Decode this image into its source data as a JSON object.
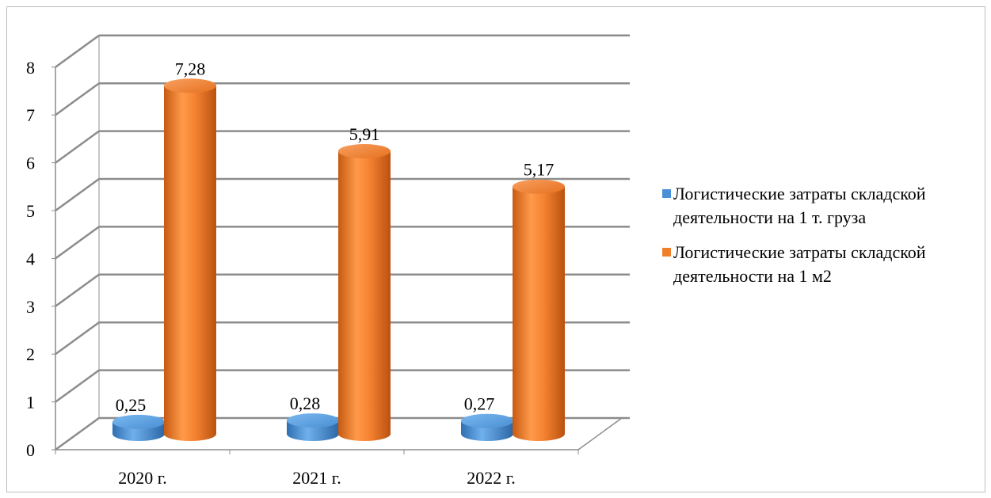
{
  "chart_data": {
    "type": "bar",
    "style": "3d-cylinder",
    "categories": [
      "2020 г.",
      "2021 г.",
      "2022 г."
    ],
    "series": [
      {
        "name": "Логистические затраты складской деятельности на 1 т. груза",
        "values": [
          0.25,
          0.28,
          0.27
        ],
        "labels": [
          "0,25",
          "0,28",
          "0,27"
        ],
        "color": "#4a90d9"
      },
      {
        "name": "Логистические затраты складской деятельности на 1 м2",
        "values": [
          7.28,
          5.91,
          5.17
        ],
        "labels": [
          "7,28",
          "5,91",
          "5,17"
        ],
        "color": "#f07f2c"
      }
    ],
    "y_ticks": [
      "0",
      "1",
      "2",
      "3",
      "4",
      "5",
      "6",
      "7",
      "8"
    ],
    "ylim": [
      0,
      8
    ],
    "grid": true,
    "legend_position": "right",
    "title": "",
    "xlabel": "",
    "ylabel": ""
  }
}
